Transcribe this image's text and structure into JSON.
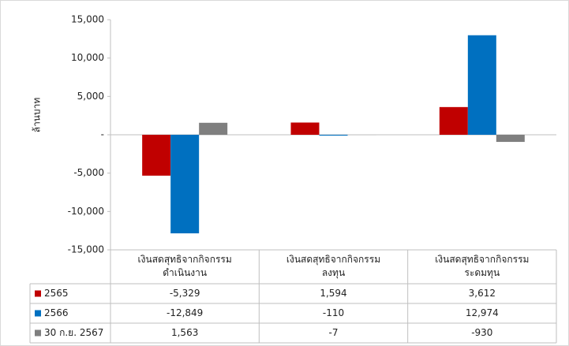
{
  "chart_data": {
    "type": "bar",
    "y_label": "ล้านบาท",
    "categories": [
      "เงินสดสุทธิจากกิจกรรม\nดำเนินงาน",
      "เงินสดสุทธิจากกิจกรรม\nลงทุน",
      "เงินสดสุทธิจากกิจกรรม\nระดมทุน"
    ],
    "series": [
      {
        "name": "2565",
        "color": "#c00000",
        "values": [
          -5329,
          1594,
          3612
        ],
        "value_labels": [
          "-5,329",
          "1,594",
          "3,612"
        ]
      },
      {
        "name": "2566",
        "color": "#0070c0",
        "values": [
          -12849,
          -110,
          12974
        ],
        "value_labels": [
          "-12,849",
          "-110",
          "12,974"
        ]
      },
      {
        "name": "30 ก.ย. 2567",
        "color": "#7f7f7f",
        "values": [
          1563,
          -7,
          -930
        ],
        "value_labels": [
          "1,563",
          "-7",
          "-930"
        ]
      }
    ],
    "ylim": [
      -15000,
      15000
    ],
    "yticks": [
      {
        "value": -15000,
        "label": "-15,000"
      },
      {
        "value": -10000,
        "label": "-10,000"
      },
      {
        "value": -5000,
        "label": "-5,000"
      },
      {
        "value": 0,
        "label": "-"
      },
      {
        "value": 5000,
        "label": "5,000"
      },
      {
        "value": 10000,
        "label": "10,000"
      },
      {
        "value": 15000,
        "label": "15,000"
      }
    ],
    "data_table": true
  }
}
